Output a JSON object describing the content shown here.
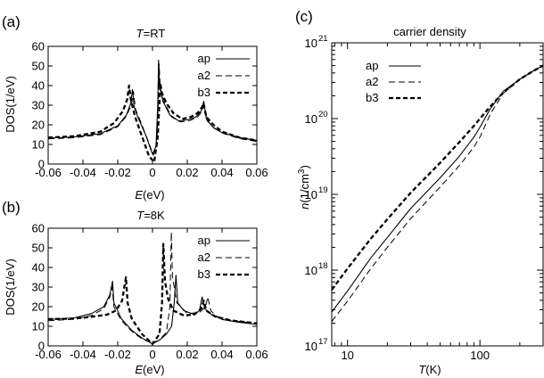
{
  "chart_data": [
    {
      "panel_label": "(a)",
      "type": "line",
      "title_var": "T",
      "title_val": "=RT",
      "xlabel_var": "E",
      "xlabel_unit": "(eV)",
      "ylabel": "DOS(1/eV)",
      "xlim": [
        -0.06,
        0.06
      ],
      "ylim": [
        0,
        60
      ],
      "xticks": [
        "-0.06",
        "-0.04",
        "-0.02",
        "0",
        "0.02",
        "0.04",
        "0.06"
      ],
      "yticks": [
        "0",
        "10",
        "20",
        "30",
        "40",
        "50",
        "60"
      ],
      "legend": "top-right",
      "series": [
        {
          "name": "ap",
          "style": "solid",
          "points": [
            [
              -0.06,
              13.2
            ],
            [
              -0.045,
              13.8
            ],
            [
              -0.03,
              15.5
            ],
            [
              -0.02,
              19.5
            ],
            [
              -0.015,
              25
            ],
            [
              -0.0125,
              31
            ],
            [
              -0.0115,
              38
            ],
            [
              -0.0105,
              29
            ],
            [
              -0.008,
              23
            ],
            [
              -0.004,
              15
            ],
            [
              0.0,
              5
            ],
            [
              0.002,
              9
            ],
            [
              0.003,
              30
            ],
            [
              0.0035,
              53
            ],
            [
              0.004,
              40
            ],
            [
              0.006,
              32
            ],
            [
              0.01,
              25
            ],
            [
              0.015,
              22
            ],
            [
              0.02,
              22.5
            ],
            [
              0.025,
              24
            ],
            [
              0.028,
              27
            ],
            [
              0.0295,
              32
            ],
            [
              0.031,
              23
            ],
            [
              0.035,
              18.5
            ],
            [
              0.04,
              16
            ],
            [
              0.05,
              13.5
            ],
            [
              0.06,
              12
            ]
          ]
        },
        {
          "name": "a2",
          "style": "dashed",
          "points": [
            [
              -0.06,
              12.8
            ],
            [
              -0.045,
              13.4
            ],
            [
              -0.03,
              15
            ],
            [
              -0.02,
              19
            ],
            [
              -0.015,
              24.5
            ],
            [
              -0.012,
              30.5
            ],
            [
              -0.011,
              37
            ],
            [
              -0.0098,
              28
            ],
            [
              -0.007,
              22
            ],
            [
              -0.003,
              13
            ],
            [
              0.0005,
              4.5
            ],
            [
              0.0025,
              10
            ],
            [
              0.0033,
              30
            ],
            [
              0.0038,
              51
            ],
            [
              0.0045,
              38.5
            ],
            [
              0.007,
              31
            ],
            [
              0.011,
              24
            ],
            [
              0.016,
              21.5
            ],
            [
              0.021,
              22
            ],
            [
              0.026,
              24
            ],
            [
              0.0285,
              27
            ],
            [
              0.03,
              30
            ],
            [
              0.0315,
              22
            ],
            [
              0.036,
              18
            ],
            [
              0.041,
              15.5
            ],
            [
              0.05,
              13
            ],
            [
              0.06,
              11.5
            ]
          ]
        },
        {
          "name": "b3",
          "style": "bold-dashed",
          "points": [
            [
              -0.06,
              13.5
            ],
            [
              -0.045,
              14.2
            ],
            [
              -0.03,
              16.5
            ],
            [
              -0.022,
              21
            ],
            [
              -0.017,
              27
            ],
            [
              -0.0145,
              33
            ],
            [
              -0.0135,
              40
            ],
            [
              -0.0125,
              33
            ],
            [
              -0.01,
              24
            ],
            [
              -0.006,
              14
            ],
            [
              -0.002,
              4
            ],
            [
              0.001,
              1
            ],
            [
              0.003,
              14
            ],
            [
              0.0045,
              41
            ],
            [
              0.0055,
              36
            ],
            [
              0.008,
              31
            ],
            [
              0.012,
              26
            ],
            [
              0.017,
              23
            ],
            [
              0.022,
              24
            ],
            [
              0.026,
              26
            ],
            [
              0.0285,
              29
            ],
            [
              0.0292,
              31
            ],
            [
              0.031,
              24
            ],
            [
              0.035,
              20
            ],
            [
              0.04,
              16.5
            ],
            [
              0.05,
              13.5
            ],
            [
              0.06,
              12
            ]
          ]
        }
      ]
    },
    {
      "panel_label": "(b)",
      "type": "line",
      "title_var": "T",
      "title_val": "=8K",
      "xlabel_var": "E",
      "xlabel_unit": "(eV)",
      "ylabel": "DOS(1/eV)",
      "xlim": [
        -0.06,
        0.06
      ],
      "ylim": [
        0,
        60
      ],
      "xticks": [
        "-0.06",
        "-0.04",
        "-0.02",
        "0",
        "0.02",
        "0.04",
        "0.06"
      ],
      "yticks": [
        "0",
        "10",
        "20",
        "30",
        "40",
        "50",
        "60"
      ],
      "legend": "top-right",
      "series": [
        {
          "name": "ap",
          "style": "solid",
          "points": [
            [
              -0.06,
              13.5
            ],
            [
              -0.045,
              14.3
            ],
            [
              -0.035,
              16.5
            ],
            [
              -0.028,
              20
            ],
            [
              -0.0245,
              26
            ],
            [
              -0.023,
              33
            ],
            [
              -0.0222,
              22
            ],
            [
              -0.018,
              14
            ],
            [
              -0.012,
              8
            ],
            [
              -0.006,
              4
            ],
            [
              0.0,
              1
            ],
            [
              0.004,
              3
            ],
            [
              0.008,
              6
            ],
            [
              0.011,
              10
            ],
            [
              0.0125,
              22
            ],
            [
              0.0135,
              36
            ],
            [
              0.0145,
              22
            ],
            [
              0.018,
              18
            ],
            [
              0.024,
              16
            ],
            [
              0.027,
              18
            ],
            [
              0.0285,
              25
            ],
            [
              0.03,
              19
            ],
            [
              0.034,
              16
            ],
            [
              0.04,
              13.5
            ],
            [
              0.05,
              12
            ],
            [
              0.06,
              11
            ]
          ]
        },
        {
          "name": "a2",
          "style": "dashed",
          "points": [
            [
              -0.06,
              12.8
            ],
            [
              -0.045,
              13.6
            ],
            [
              -0.035,
              15.5
            ],
            [
              -0.028,
              19
            ],
            [
              -0.0245,
              25
            ],
            [
              -0.0232,
              30
            ],
            [
              -0.0222,
              20
            ],
            [
              -0.018,
              13
            ],
            [
              -0.012,
              7.5
            ],
            [
              -0.006,
              3.5
            ],
            [
              0.0,
              1.5
            ],
            [
              0.004,
              3
            ],
            [
              0.008,
              7
            ],
            [
              0.01,
              20
            ],
            [
              0.0108,
              58
            ],
            [
              0.0115,
              35
            ],
            [
              0.014,
              22
            ],
            [
              0.02,
              16.5
            ],
            [
              0.027,
              17
            ],
            [
              0.0305,
              20
            ],
            [
              0.0318,
              25
            ],
            [
              0.0335,
              18
            ],
            [
              0.037,
              15
            ],
            [
              0.045,
              13
            ],
            [
              0.06,
              11.5
            ]
          ]
        },
        {
          "name": "b3",
          "style": "bold-dashed",
          "points": [
            [
              -0.06,
              13.7
            ],
            [
              -0.045,
              13.9
            ],
            [
              -0.035,
              14.8
            ],
            [
              -0.026,
              16
            ],
            [
              -0.021,
              18
            ],
            [
              -0.0175,
              23
            ],
            [
              -0.0162,
              30
            ],
            [
              -0.0153,
              35
            ],
            [
              -0.0143,
              22
            ],
            [
              -0.012,
              14
            ],
            [
              -0.006,
              6
            ],
            [
              0.0,
              1
            ],
            [
              0.004,
              6
            ],
            [
              0.0055,
              22
            ],
            [
              0.0062,
              52
            ],
            [
              0.0072,
              33
            ],
            [
              0.009,
              24
            ],
            [
              0.012,
              18
            ],
            [
              0.018,
              15.5
            ],
            [
              0.024,
              16
            ],
            [
              0.028,
              19
            ],
            [
              0.0295,
              23
            ],
            [
              0.031,
              18
            ],
            [
              0.036,
              15
            ],
            [
              0.045,
              13
            ],
            [
              0.06,
              11.5
            ]
          ]
        }
      ]
    },
    {
      "panel_label": "(c)",
      "type": "line",
      "title": "carrier density",
      "xlabel_var": "T",
      "xlabel_unit": "(K)",
      "ylabel_var": "n",
      "ylabel_unit": "(1/cm",
      "ylabel_sup": "3",
      "ylabel_close": ")",
      "xscale": "log",
      "yscale": "log",
      "xlim": [
        7.6,
        300
      ],
      "ylim": [
        1e+17,
        1e+21
      ],
      "xticks": [
        {
          "value": 10,
          "label": "10"
        },
        {
          "value": 100,
          "label": "100"
        }
      ],
      "yticks": [
        {
          "value": 1e+17,
          "base": "10",
          "exp": "17"
        },
        {
          "value": 1e+18,
          "base": "10",
          "exp": "18"
        },
        {
          "value": 1e+19,
          "base": "10",
          "exp": "19"
        },
        {
          "value": 1e+20,
          "base": "10",
          "exp": "20"
        },
        {
          "value": 1e+21,
          "base": "10",
          "exp": "21"
        }
      ],
      "legend": "top-left",
      "series": [
        {
          "name": "ap",
          "style": "solid",
          "points": [
            [
              7.6,
              2.8e+17
            ],
            [
              10,
              5.3e+17
            ],
            [
              15,
              1.45e+18
            ],
            [
              20,
              2.7e+18
            ],
            [
              30,
              6.5e+18
            ],
            [
              50,
              1.65e+19
            ],
            [
              70,
              3.2e+19
            ],
            [
              90,
              5.7e+19
            ],
            [
              100,
              7.7e+19
            ],
            [
              120,
              1.35e+20
            ],
            [
              150,
              2.3e+20
            ],
            [
              200,
              3.3e+20
            ],
            [
              250,
              4.2e+20
            ],
            [
              300,
              5e+20
            ]
          ]
        },
        {
          "name": "a2",
          "style": "dashed",
          "points": [
            [
              7.6,
              2.1e+17
            ],
            [
              10,
              3.9e+17
            ],
            [
              15,
              1.05e+18
            ],
            [
              20,
              2e+18
            ],
            [
              30,
              4.8e+18
            ],
            [
              50,
              1.25e+19
            ],
            [
              70,
              2.4e+19
            ],
            [
              90,
              4.2e+19
            ],
            [
              100,
              5.7e+19
            ],
            [
              120,
              1.15e+20
            ],
            [
              150,
              2.15e+20
            ],
            [
              200,
              3.3e+20
            ],
            [
              250,
              4.2e+20
            ],
            [
              300,
              5e+20
            ]
          ]
        },
        {
          "name": "b3",
          "style": "bold-dashed",
          "points": [
            [
              7.6,
              5.5e+17
            ],
            [
              10,
              1.05e+18
            ],
            [
              15,
              2.6e+18
            ],
            [
              20,
              4.7e+18
            ],
            [
              30,
              1.05e+19
            ],
            [
              50,
              2.6e+19
            ],
            [
              70,
              4.9e+19
            ],
            [
              90,
              8e+19
            ],
            [
              100,
              1e+20
            ],
            [
              120,
              1.45e+20
            ],
            [
              150,
              2.2e+20
            ],
            [
              200,
              3.3e+20
            ],
            [
              250,
              4.2e+20
            ],
            [
              300,
              5e+20
            ]
          ]
        }
      ]
    }
  ]
}
